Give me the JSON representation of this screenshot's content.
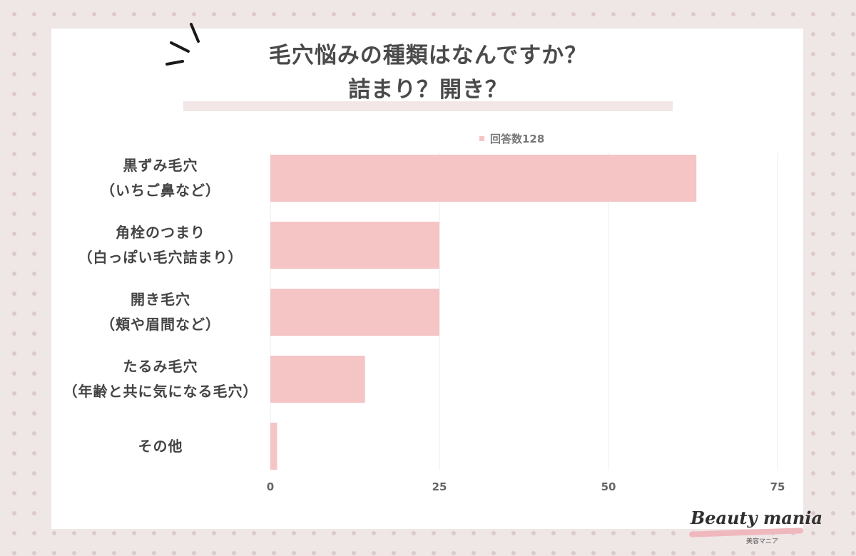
{
  "title": {
    "line1": "毛穴悩みの種類はなんですか？",
    "line2": "詰まり？開き？"
  },
  "legend": {
    "label": "回答数128",
    "color": "#f5c5c6"
  },
  "brand": {
    "name": "Beauty mania",
    "sub": "美容マニア"
  },
  "colors": {
    "bar": "#f5c5c6",
    "grid": "#ececec",
    "text": "#444444"
  },
  "chart_data": {
    "type": "bar",
    "orientation": "horizontal",
    "title": "毛穴悩みの種類はなんですか？ 詰まり？開き？",
    "categories": [
      [
        "黒ずみ毛穴",
        "（いちご鼻など）"
      ],
      [
        "角栓のつまり",
        "（白っぽい毛穴詰まり）"
      ],
      [
        "開き毛穴",
        "（頬や眉間など）"
      ],
      [
        "たるみ毛穴",
        "（年齢と共に気になる毛穴）"
      ],
      [
        "その他"
      ]
    ],
    "series": [
      {
        "name": "回答数128",
        "values": [
          63,
          25,
          25,
          14,
          1
        ]
      }
    ],
    "xlim": [
      0,
      75
    ],
    "xticks": [
      0,
      25,
      50,
      75
    ],
    "grid": true,
    "legend_position": "top-right"
  }
}
